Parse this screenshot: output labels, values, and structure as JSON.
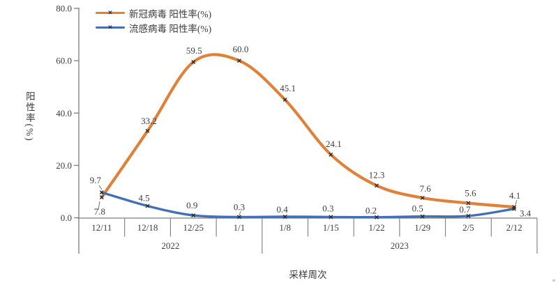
{
  "chart_data": {
    "type": "line",
    "smoothed": true,
    "grid": false,
    "legend_position": "top-left",
    "xlabel": "采样周次",
    "ylabel": "阳性率(%)",
    "ylim": [
      0,
      80
    ],
    "yticks": [
      0,
      20,
      40,
      60,
      80
    ],
    "ytick_decimals": 1,
    "categories": [
      "12/11",
      "12/18",
      "12/25",
      "1/1",
      "1/8",
      "1/15",
      "1/22",
      "1/29",
      "2/5",
      "2/12"
    ],
    "year_groups": [
      {
        "label": "2022",
        "span": 4
      },
      {
        "label": "2023",
        "span": 6
      }
    ],
    "series": [
      {
        "name": "新冠病毒 阳性率(%)",
        "color": "#E0813A",
        "values": [
          7.8,
          33.2,
          59.5,
          60.0,
          45.1,
          24.1,
          12.3,
          7.6,
          5.6,
          4.1
        ]
      },
      {
        "name": "流感病毒 阳性率(%)",
        "color": "#4270B4",
        "values": [
          9.7,
          4.5,
          0.9,
          0.3,
          0.4,
          0.3,
          0.2,
          0.5,
          0.7,
          3.4
        ]
      }
    ]
  },
  "colors": {
    "background": "#ffffff",
    "axis": "#7d7d7d",
    "text": "#3d3d3d",
    "marker": "#26282d",
    "leader": "#666666"
  },
  "icons": {
    "series_marker": "×"
  }
}
